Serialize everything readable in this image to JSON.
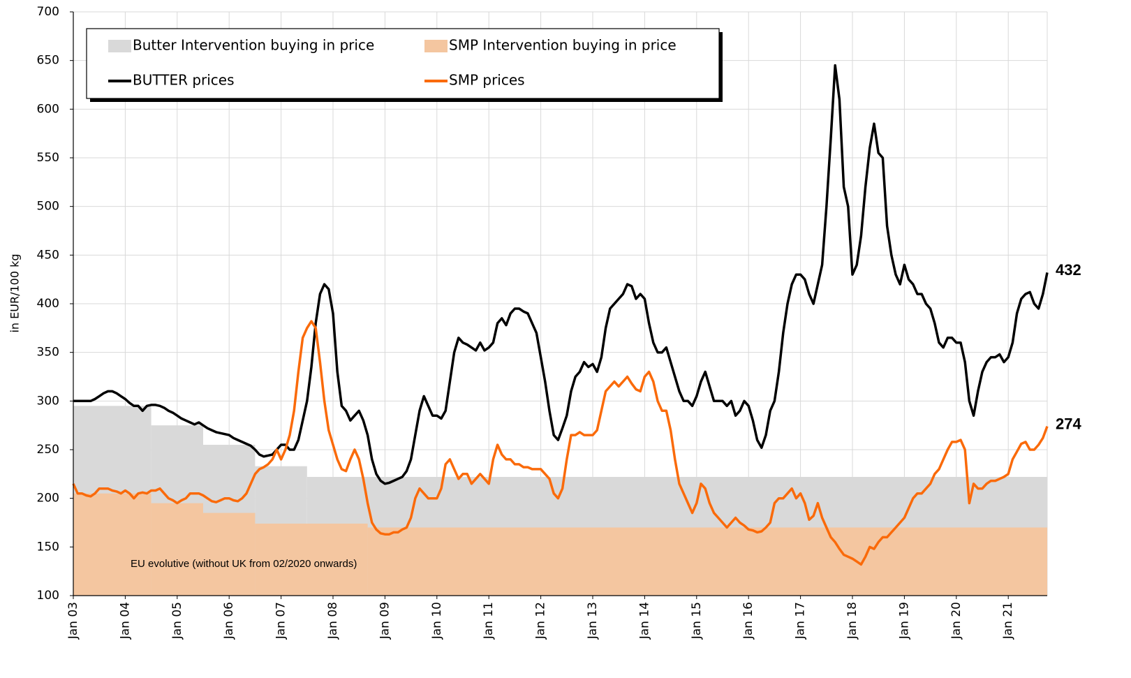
{
  "chart_data": {
    "type": "line",
    "y_label": "in EUR/100 kg",
    "annotation": "EU evolutive (without UK from 02/2020 onwards)",
    "xlim": [
      "2003-01",
      "2021-10"
    ],
    "ylim": [
      100,
      700
    ],
    "yticks": [
      100,
      150,
      200,
      250,
      300,
      350,
      400,
      450,
      500,
      550,
      600,
      650,
      700
    ],
    "xticks": [
      {
        "value": "2003-01",
        "label": "Jan 03"
      },
      {
        "value": "2004-01",
        "label": "Jan 04"
      },
      {
        "value": "2005-01",
        "label": "Jan 05"
      },
      {
        "value": "2006-01",
        "label": "Jan 06"
      },
      {
        "value": "2007-01",
        "label": "Jan 07"
      },
      {
        "value": "2008-01",
        "label": "Jan 08"
      },
      {
        "value": "2009-01",
        "label": "Jan 09"
      },
      {
        "value": "2010-01",
        "label": "Jan 10"
      },
      {
        "value": "2011-01",
        "label": "Jan 11"
      },
      {
        "value": "2012-01",
        "label": "Jan 12"
      },
      {
        "value": "2013-01",
        "label": "Jan 13"
      },
      {
        "value": "2014-01",
        "label": "Jan 14"
      },
      {
        "value": "2015-01",
        "label": "Jan 15"
      },
      {
        "value": "2016-01",
        "label": "Jan 16"
      },
      {
        "value": "2017-01",
        "label": "Jan 17"
      },
      {
        "value": "2018-01",
        "label": "Jan 18"
      },
      {
        "value": "2019-01",
        "label": "Jan 19"
      },
      {
        "value": "2020-01",
        "label": "Jan 20"
      },
      {
        "value": "2021-01",
        "label": "Jan 21"
      }
    ],
    "grid": true,
    "x": [
      "2003-01",
      "2003-02",
      "2003-03",
      "2003-04",
      "2003-05",
      "2003-06",
      "2003-07",
      "2003-08",
      "2003-09",
      "2003-10",
      "2003-11",
      "2003-12",
      "2004-01",
      "2004-02",
      "2004-03",
      "2004-04",
      "2004-05",
      "2004-06",
      "2004-07",
      "2004-08",
      "2004-09",
      "2004-10",
      "2004-11",
      "2004-12",
      "2005-01",
      "2005-02",
      "2005-03",
      "2005-04",
      "2005-05",
      "2005-06",
      "2005-07",
      "2005-08",
      "2005-09",
      "2005-10",
      "2005-11",
      "2005-12",
      "2006-01",
      "2006-02",
      "2006-03",
      "2006-04",
      "2006-05",
      "2006-06",
      "2006-07",
      "2006-08",
      "2006-09",
      "2006-10",
      "2006-11",
      "2006-12",
      "2007-01",
      "2007-02",
      "2007-03",
      "2007-04",
      "2007-05",
      "2007-06",
      "2007-07",
      "2007-08",
      "2007-09",
      "2007-10",
      "2007-11",
      "2007-12",
      "2008-01",
      "2008-02",
      "2008-03",
      "2008-04",
      "2008-05",
      "2008-06",
      "2008-07",
      "2008-08",
      "2008-09",
      "2008-10",
      "2008-11",
      "2008-12",
      "2009-01",
      "2009-02",
      "2009-03",
      "2009-04",
      "2009-05",
      "2009-06",
      "2009-07",
      "2009-08",
      "2009-09",
      "2009-10",
      "2009-11",
      "2009-12",
      "2010-01",
      "2010-02",
      "2010-03",
      "2010-04",
      "2010-05",
      "2010-06",
      "2010-07",
      "2010-08",
      "2010-09",
      "2010-10",
      "2010-11",
      "2010-12",
      "2011-01",
      "2011-02",
      "2011-03",
      "2011-04",
      "2011-05",
      "2011-06",
      "2011-07",
      "2011-08",
      "2011-09",
      "2011-10",
      "2011-11",
      "2011-12",
      "2012-01",
      "2012-02",
      "2012-03",
      "2012-04",
      "2012-05",
      "2012-06",
      "2012-07",
      "2012-08",
      "2012-09",
      "2012-10",
      "2012-11",
      "2012-12",
      "2013-01",
      "2013-02",
      "2013-03",
      "2013-04",
      "2013-05",
      "2013-06",
      "2013-07",
      "2013-08",
      "2013-09",
      "2013-10",
      "2013-11",
      "2013-12",
      "2014-01",
      "2014-02",
      "2014-03",
      "2014-04",
      "2014-05",
      "2014-06",
      "2014-07",
      "2014-08",
      "2014-09",
      "2014-10",
      "2014-11",
      "2014-12",
      "2015-01",
      "2015-02",
      "2015-03",
      "2015-04",
      "2015-05",
      "2015-06",
      "2015-07",
      "2015-08",
      "2015-09",
      "2015-10",
      "2015-11",
      "2015-12",
      "2016-01",
      "2016-02",
      "2016-03",
      "2016-04",
      "2016-05",
      "2016-06",
      "2016-07",
      "2016-08",
      "2016-09",
      "2016-10",
      "2016-11",
      "2016-12",
      "2017-01",
      "2017-02",
      "2017-03",
      "2017-04",
      "2017-05",
      "2017-06",
      "2017-07",
      "2017-08",
      "2017-09",
      "2017-10",
      "2017-11",
      "2017-12",
      "2018-01",
      "2018-02",
      "2018-03",
      "2018-04",
      "2018-05",
      "2018-06",
      "2018-07",
      "2018-08",
      "2018-09",
      "2018-10",
      "2018-11",
      "2018-12",
      "2019-01",
      "2019-02",
      "2019-03",
      "2019-04",
      "2019-05",
      "2019-06",
      "2019-07",
      "2019-08",
      "2019-09",
      "2019-10",
      "2019-11",
      "2019-12",
      "2020-01",
      "2020-02",
      "2020-03",
      "2020-04",
      "2020-05",
      "2020-06",
      "2020-07",
      "2020-08",
      "2020-09",
      "2020-10",
      "2020-11",
      "2020-12",
      "2021-01",
      "2021-02",
      "2021-03",
      "2021-04",
      "2021-05",
      "2021-06",
      "2021-07",
      "2021-08",
      "2021-09",
      "2021-10"
    ],
    "series": [
      {
        "name": "Butter Intervention buying in price",
        "kind": "step-area",
        "color": "#d9d9d9",
        "x": [
          "2003-01",
          "2004-07",
          "2005-07",
          "2006-07",
          "2007-07"
        ],
        "values": [
          295,
          275,
          255,
          233,
          222
        ]
      },
      {
        "name": "SMP Intervention buying in price",
        "kind": "step-area",
        "color": "#f4c6a0",
        "x": [
          "2003-01",
          "2004-07",
          "2005-07",
          "2006-07",
          "2008-09"
        ],
        "values": [
          205,
          195,
          185,
          174,
          170
        ]
      },
      {
        "name": "BUTTER prices",
        "kind": "line",
        "color": "#000000",
        "end_label": true,
        "values": [
          300,
          300,
          300,
          300,
          300,
          302,
          305,
          308,
          310,
          310,
          308,
          305,
          302,
          298,
          295,
          295,
          290,
          295,
          296,
          296,
          295,
          293,
          290,
          288,
          285,
          282,
          280,
          278,
          276,
          278,
          275,
          272,
          270,
          268,
          267,
          266,
          265,
          262,
          260,
          258,
          256,
          254,
          250,
          245,
          243,
          244,
          245,
          250,
          255,
          255,
          250,
          250,
          260,
          280,
          300,
          335,
          380,
          410,
          420,
          415,
          390,
          330,
          295,
          290,
          280,
          285,
          290,
          280,
          265,
          240,
          225,
          218,
          215,
          216,
          218,
          220,
          222,
          228,
          240,
          265,
          290,
          305,
          295,
          285,
          285,
          282,
          290,
          320,
          350,
          365,
          360,
          358,
          355,
          352,
          360,
          352,
          355,
          360,
          380,
          385,
          378,
          390,
          395,
          395,
          392,
          390,
          380,
          370,
          345,
          320,
          290,
          265,
          260,
          272,
          285,
          310,
          325,
          330,
          340,
          335,
          338,
          330,
          345,
          375,
          395,
          400,
          405,
          410,
          420,
          418,
          405,
          410,
          405,
          380,
          360,
          350,
          350,
          355,
          340,
          325,
          310,
          300,
          300,
          295,
          305,
          320,
          330,
          315,
          300,
          300,
          300,
          295,
          300,
          285,
          290,
          300,
          295,
          280,
          260,
          252,
          265,
          290,
          300,
          330,
          370,
          400,
          420,
          430,
          430,
          425,
          410,
          400,
          420,
          440,
          500,
          570,
          645,
          610,
          520,
          500,
          430,
          440,
          470,
          520,
          560,
          585,
          555,
          550,
          480,
          450,
          430,
          420,
          440,
          425,
          420,
          410,
          410,
          400,
          395,
          380,
          360,
          355,
          365,
          365,
          360,
          360,
          340,
          300,
          285,
          310,
          330,
          340,
          345,
          345,
          348,
          340,
          345,
          360,
          390,
          405,
          410,
          412,
          400,
          395,
          410,
          432
        ]
      },
      {
        "name": "SMP prices",
        "kind": "line",
        "color": "#fa6a0a",
        "end_label": true,
        "values": [
          215,
          205,
          205,
          203,
          202,
          205,
          210,
          210,
          210,
          208,
          207,
          205,
          208,
          205,
          200,
          205,
          206,
          205,
          208,
          208,
          210,
          205,
          200,
          198,
          195,
          198,
          200,
          205,
          205,
          205,
          203,
          200,
          197,
          196,
          198,
          200,
          200,
          198,
          197,
          200,
          205,
          215,
          225,
          230,
          232,
          235,
          240,
          250,
          240,
          250,
          265,
          290,
          330,
          365,
          375,
          382,
          375,
          340,
          300,
          270,
          255,
          240,
          230,
          228,
          240,
          250,
          240,
          220,
          195,
          175,
          168,
          164,
          163,
          163,
          165,
          165,
          168,
          170,
          180,
          200,
          210,
          205,
          200,
          200,
          200,
          210,
          235,
          240,
          230,
          220,
          225,
          225,
          215,
          220,
          225,
          220,
          215,
          240,
          255,
          245,
          240,
          240,
          235,
          235,
          232,
          232,
          230,
          230,
          230,
          225,
          220,
          205,
          200,
          210,
          240,
          265,
          265,
          268,
          265,
          265,
          265,
          270,
          290,
          310,
          315,
          320,
          315,
          320,
          325,
          318,
          312,
          310,
          325,
          330,
          320,
          300,
          290,
          290,
          270,
          240,
          215,
          205,
          195,
          185,
          195,
          215,
          210,
          195,
          185,
          180,
          175,
          170,
          175,
          180,
          175,
          172,
          168,
          167,
          165,
          166,
          170,
          175,
          195,
          200,
          200,
          205,
          210,
          200,
          205,
          195,
          178,
          182,
          195,
          180,
          170,
          160,
          155,
          148,
          142,
          140,
          138,
          135,
          132,
          140,
          150,
          148,
          155,
          160,
          160,
          165,
          170,
          175,
          180,
          190,
          200,
          205,
          205,
          210,
          215,
          225,
          230,
          240,
          250,
          258,
          258,
          260,
          250,
          195,
          215,
          210,
          210,
          215,
          218,
          218,
          220,
          222,
          225,
          240,
          248,
          256,
          258,
          250,
          250,
          255,
          262,
          274
        ]
      }
    ]
  }
}
